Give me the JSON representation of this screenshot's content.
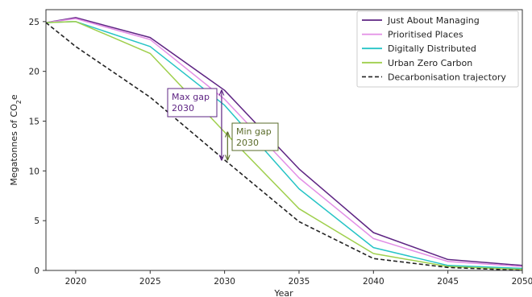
{
  "chart_data": {
    "type": "line",
    "title": "",
    "xlabel": "Year",
    "ylabel_prefix": "Megatonnes of CO",
    "ylabel_sub": "2",
    "ylabel_suffix": "e",
    "xlim": [
      2018,
      2050
    ],
    "ylim": [
      0,
      26.2
    ],
    "xticks": [
      2020,
      2025,
      2030,
      2035,
      2040,
      2045,
      2050
    ],
    "yticks": [
      0,
      5,
      10,
      15,
      20,
      25
    ],
    "grid": false,
    "legend_position": "top-right",
    "x": [
      2018,
      2020,
      2025,
      2030,
      2035,
      2040,
      2045,
      2050
    ],
    "series": [
      {
        "name": "Just About Managing",
        "color": "#5e2483",
        "dash": "solid",
        "values": [
          24.9,
          25.4,
          23.4,
          18.1,
          10.2,
          3.8,
          1.1,
          0.5
        ]
      },
      {
        "name": "Prioritised Places",
        "color": "#e28ee6",
        "dash": "solid",
        "values": [
          24.9,
          25.3,
          23.2,
          17.2,
          9.3,
          3.2,
          0.9,
          0.4
        ]
      },
      {
        "name": "Digitally Distributed",
        "color": "#26c4c6",
        "dash": "solid",
        "values": [
          24.9,
          25.0,
          22.5,
          16.6,
          8.2,
          2.3,
          0.5,
          0.2
        ]
      },
      {
        "name": "Urban Zero Carbon",
        "color": "#9fcf4c",
        "dash": "solid",
        "values": [
          24.9,
          25.0,
          21.8,
          13.9,
          6.2,
          1.7,
          0.4,
          0.1
        ]
      },
      {
        "name": "Decarbonisation trajectory",
        "color": "#222222",
        "dash": "dashed",
        "values": [
          24.9,
          22.5,
          17.4,
          11.1,
          4.9,
          1.2,
          0.3,
          0.0
        ]
      }
    ],
    "annotations": [
      {
        "id": "max",
        "line1": "Max gap",
        "line2": "2030",
        "color": "#5e2483",
        "arrow_x": 2029.8,
        "y_from": 11.1,
        "y_to": 18.1
      },
      {
        "id": "min",
        "line1": "Min gap",
        "line2": "2030",
        "color": "#5a6b2a",
        "arrow_x": 2030.2,
        "y_from": 11.1,
        "y_to": 13.9
      }
    ]
  }
}
